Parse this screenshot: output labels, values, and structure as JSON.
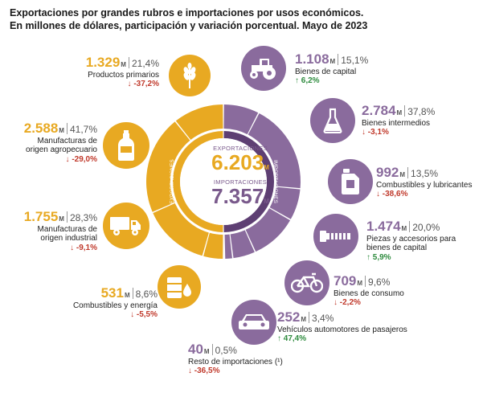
{
  "title": {
    "line1": "Exportaciones por grandes rubros e importaciones por usos económicos.",
    "line2": "En millones de dólares, participación y variación porcentual. Mayo de 2023"
  },
  "center": {
    "exports_label": "EXPORTACIONES",
    "exports_value": "6.203",
    "imports_label": "IMPORTACIONES",
    "imports_value": "7.357",
    "unit": "M",
    "ring_exports_label": "EXPORTACIONES",
    "ring_imports_label": "IMPORTACIONES"
  },
  "colors": {
    "exports": "#e8a922",
    "imports": "#8a6b9d",
    "down": "#c0392b",
    "up": "#2e8b3e"
  },
  "chart_data": {
    "type": "pie",
    "title": "Exportaciones por grandes rubros e importaciones por usos económicos. En millones de dólares, participación y variación porcentual. Mayo de 2023",
    "unit": "M",
    "totals": {
      "exportaciones": 6203,
      "importaciones": 7357
    },
    "series": [
      {
        "name": "EXPORTACIONES",
        "categories": [
          {
            "label": "Productos primarios",
            "value": "1.329",
            "share": "21,4%",
            "change": "-37,2%",
            "dir": "down",
            "icon": "wheat-icon"
          },
          {
            "label_1": "Manufacturas de",
            "label_2": "origen agropecuario",
            "value": "2.588",
            "share": "41,7%",
            "change": "-29,0%",
            "dir": "down",
            "icon": "bottle-icon"
          },
          {
            "label_1": "Manufacturas de",
            "label_2": "origen industrial",
            "value": "1.755",
            "share": "28,3%",
            "change": "-9,1%",
            "dir": "down",
            "icon": "truck-icon"
          },
          {
            "label": "Combustibles y energía",
            "value": "531",
            "share": "8,6%",
            "change": "-5,5%",
            "dir": "down",
            "icon": "oil-drop-icon"
          }
        ]
      },
      {
        "name": "IMPORTACIONES",
        "categories": [
          {
            "label": "Bienes de capital",
            "value": "1.108",
            "share": "15,1%",
            "change": "6,2%",
            "dir": "up",
            "icon": "tractor-icon"
          },
          {
            "label": "Bienes intermedios",
            "value": "2.784",
            "share": "37,8%",
            "change": "-3,1%",
            "dir": "down",
            "icon": "flask-icon"
          },
          {
            "label": "Combustibles y lubricantes",
            "value": "992",
            "share": "13,5%",
            "change": "-38,6%",
            "dir": "down",
            "icon": "jerrycan-icon"
          },
          {
            "label_1": "Piezas y accesorios para",
            "label_2": "bienes de capital",
            "value": "1.474",
            "share": "20,0%",
            "change": "5,9%",
            "dir": "up",
            "icon": "bolt-icon"
          },
          {
            "label": "Bienes de consumo",
            "value": "709",
            "share": "9,6%",
            "change": "-2,2%",
            "dir": "down",
            "icon": "bicycle-icon"
          },
          {
            "label": "Vehículos automotores de pasajeros",
            "value": "252",
            "share": "3,4%",
            "change": "47,4%",
            "dir": "up",
            "icon": "car-icon"
          },
          {
            "label": "Resto de importaciones (¹)",
            "value": "40",
            "share": "0,5%",
            "change": "-36,5%",
            "dir": "down",
            "icon": ""
          }
        ]
      }
    ]
  }
}
